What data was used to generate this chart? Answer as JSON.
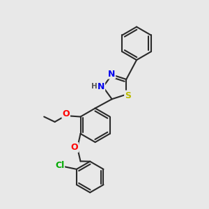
{
  "background_color": "#e8e8e8",
  "bond_color": "#2a2a2a",
  "bond_width": 1.5,
  "atom_colors": {
    "N": "#0000ee",
    "S": "#bbbb00",
    "O": "#ff0000",
    "Cl": "#00aa00",
    "H": "#555555"
  },
  "bg": "#e8e8e8"
}
